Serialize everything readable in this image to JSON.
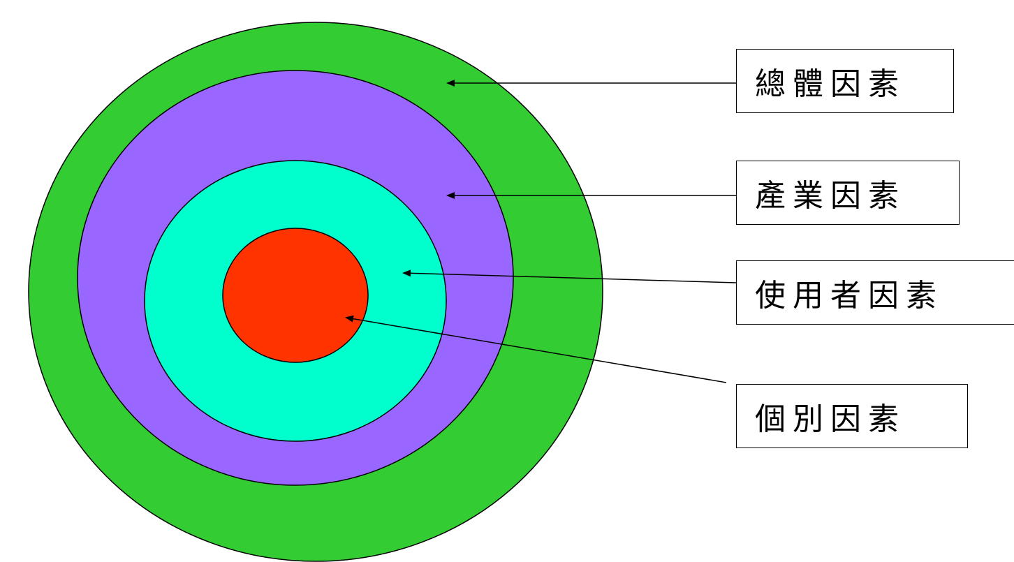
{
  "diagram": {
    "layers": [
      {
        "id": "overall",
        "label": "總體因素",
        "color": "#33cc33"
      },
      {
        "id": "industry",
        "label": "產業因素",
        "color": "#9966ff"
      },
      {
        "id": "user",
        "label": "使用者因素",
        "color": "#00ffcc"
      },
      {
        "id": "individual",
        "label": "個別因素",
        "color": "#ff3300"
      }
    ],
    "outline_color": "#000000",
    "arrow_color": "#000000"
  }
}
